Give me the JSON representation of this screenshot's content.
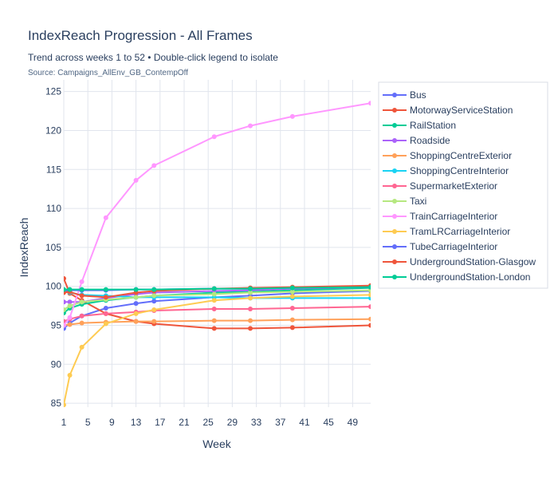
{
  "chart_data": {
    "type": "line",
    "title": "IndexReach Progression - All Frames",
    "subtitle": "Trend across weeks 1 to 52 • Double-click legend to isolate",
    "source": "Source: Campaigns_AllEnv_GB_ContempOff",
    "xlabel": "Week",
    "ylabel": "IndexReach",
    "xlim": [
      1,
      52
    ],
    "ylim": [
      84.5,
      126.5
    ],
    "xticks": [
      1,
      5,
      9,
      13,
      17,
      21,
      25,
      29,
      33,
      37,
      41,
      45,
      49
    ],
    "yticks": [
      85,
      90,
      95,
      100,
      105,
      110,
      115,
      120,
      125
    ],
    "grid": true,
    "legend_position": "right",
    "series": [
      {
        "name": "Bus",
        "color": "#636efa",
        "x": [
          1,
          2,
          4,
          8,
          13,
          16,
          26,
          32,
          39,
          52
        ],
        "y": [
          94.6,
          95.3,
          96.2,
          97.2,
          97.8,
          98.1,
          98.6,
          98.8,
          99.1,
          99.4
        ]
      },
      {
        "name": "MotorwayServiceStation",
        "color": "#EF553B",
        "x": [
          1,
          2,
          4,
          8,
          13,
          16,
          26,
          32,
          39,
          52
        ],
        "y": [
          101.0,
          99.1,
          98.2,
          96.5,
          95.5,
          95.2,
          94.6,
          94.6,
          94.7,
          95.0
        ]
      },
      {
        "name": "RailStation",
        "color": "#00cc96",
        "x": [
          1,
          2,
          4,
          8,
          13,
          16,
          26,
          32,
          39,
          52
        ],
        "y": [
          96.6,
          97.2,
          97.7,
          98.2,
          98.6,
          98.8,
          99.2,
          99.3,
          99.5,
          99.8
        ]
      },
      {
        "name": "Roadside",
        "color": "#ab63fa",
        "x": [
          1,
          2,
          4,
          8,
          13,
          16,
          26,
          32,
          39,
          52
        ],
        "y": [
          98.0,
          98.0,
          98.0,
          98.5,
          99.0,
          99.2,
          99.4,
          99.5,
          99.7,
          99.9
        ]
      },
      {
        "name": "ShoppingCentreExterior",
        "color": "#FFA15A",
        "x": [
          1,
          2,
          4,
          8,
          13,
          16,
          26,
          32,
          39,
          52
        ],
        "y": [
          95.0,
          95.1,
          95.3,
          95.4,
          95.5,
          95.5,
          95.6,
          95.6,
          95.7,
          95.8
        ]
      },
      {
        "name": "ShoppingCentreInterior",
        "color": "#19d3f3",
        "x": [
          1,
          2,
          4,
          8,
          13,
          16,
          26,
          32,
          39,
          52
        ],
        "y": [
          99.5,
          99.2,
          98.9,
          98.8,
          98.6,
          98.6,
          98.6,
          98.5,
          98.5,
          98.5
        ]
      },
      {
        "name": "SupermarketExterior",
        "color": "#FF6692",
        "x": [
          1,
          2,
          4,
          8,
          13,
          16,
          26,
          32,
          39,
          52
        ],
        "y": [
          95.5,
          95.8,
          96.2,
          96.5,
          96.7,
          96.9,
          97.1,
          97.1,
          97.2,
          97.4
        ]
      },
      {
        "name": "Taxi",
        "color": "#B6E880",
        "x": [
          1,
          2,
          4,
          8,
          13,
          16,
          26,
          32,
          39,
          52
        ],
        "y": [
          97.0,
          97.5,
          98.0,
          98.3,
          98.6,
          98.8,
          99.0,
          99.2,
          99.3,
          99.5
        ]
      },
      {
        "name": "TrainCarriageInterior",
        "color": "#FF97FF",
        "x": [
          1,
          2,
          4,
          8,
          13,
          16,
          26,
          32,
          39,
          52
        ],
        "y": [
          95.0,
          96.0,
          100.6,
          108.8,
          113.6,
          115.5,
          119.2,
          120.6,
          121.8,
          123.5
        ]
      },
      {
        "name": "TramLRCarriageInterior",
        "color": "#FECB52",
        "x": [
          1,
          2,
          4,
          8,
          13,
          16,
          26,
          32,
          39,
          52
        ],
        "y": [
          84.8,
          88.6,
          92.2,
          95.2,
          96.5,
          97.0,
          98.2,
          98.5,
          98.7,
          98.9
        ]
      },
      {
        "name": "TubeCarriageInterior",
        "color": "#636efa",
        "x": [
          1,
          2,
          4,
          8,
          13,
          16,
          26,
          32,
          39,
          52
        ],
        "y": [
          99.4,
          99.5,
          99.5,
          99.5,
          99.6,
          99.6,
          99.7,
          99.7,
          99.8,
          99.9
        ]
      },
      {
        "name": "UndergroundStation-Glasgow",
        "color": "#EF553B",
        "x": [
          1,
          2,
          4,
          8,
          13,
          16,
          26,
          32,
          39,
          52
        ],
        "y": [
          99.2,
          99.3,
          98.8,
          98.6,
          99.2,
          99.4,
          99.7,
          99.8,
          99.9,
          100.1
        ]
      },
      {
        "name": "UndergroundStation-London",
        "color": "#00cc96",
        "x": [
          1,
          2,
          4,
          8,
          13,
          16,
          26,
          32,
          39,
          52
        ],
        "y": [
          99.6,
          99.6,
          99.6,
          99.6,
          99.6,
          99.6,
          99.7,
          99.7,
          99.8,
          99.9
        ]
      }
    ]
  }
}
